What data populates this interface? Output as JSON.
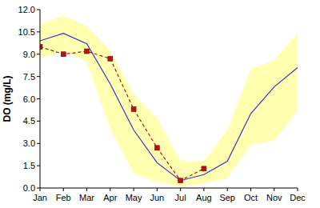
{
  "chart_data": {
    "type": "line",
    "y_label": "DO (mg/L)",
    "categories": [
      "Jan",
      "Feb",
      "Mar",
      "Apr",
      "May",
      "Jun",
      "Jul",
      "Aug",
      "Sep",
      "Oct",
      "Nov",
      "Dec"
    ],
    "series": [
      {
        "type": "range",
        "color": "#ffffb0",
        "lower": [
          8.7,
          9.2,
          8.5,
          4.0,
          1.0,
          0.4,
          0.1,
          0.3,
          0.7,
          2.9,
          3.2,
          5.2
        ],
        "upper": [
          11.0,
          11.6,
          10.9,
          9.2,
          6.3,
          4.7,
          1.8,
          1.8,
          3.9,
          8.0,
          8.6,
          10.4
        ]
      },
      {
        "type": "line",
        "color": "#3333cc",
        "values": [
          9.9,
          10.4,
          9.7,
          7.0,
          3.9,
          1.7,
          0.5,
          0.9,
          1.8,
          5.0,
          6.8,
          8.1
        ]
      },
      {
        "type": "line",
        "color": "#bb1111",
        "marker": "square",
        "line_style": "dashed",
        "values": [
          9.5,
          9.0,
          9.2,
          8.7,
          5.3,
          2.7,
          0.5,
          1.3,
          null,
          null,
          null,
          null
        ]
      }
    ],
    "ylim": [
      0,
      12
    ],
    "yticks": [
      {
        "value": 0,
        "label": "0.0"
      },
      1.5,
      {
        "value": 3,
        "label": "3.0"
      },
      4.5,
      {
        "value": 6,
        "label": "6.0"
      },
      7.5,
      {
        "value": 9,
        "label": "9.0"
      },
      10.5,
      {
        "value": 12,
        "label": "12.0"
      }
    ],
    "grid": false
  }
}
